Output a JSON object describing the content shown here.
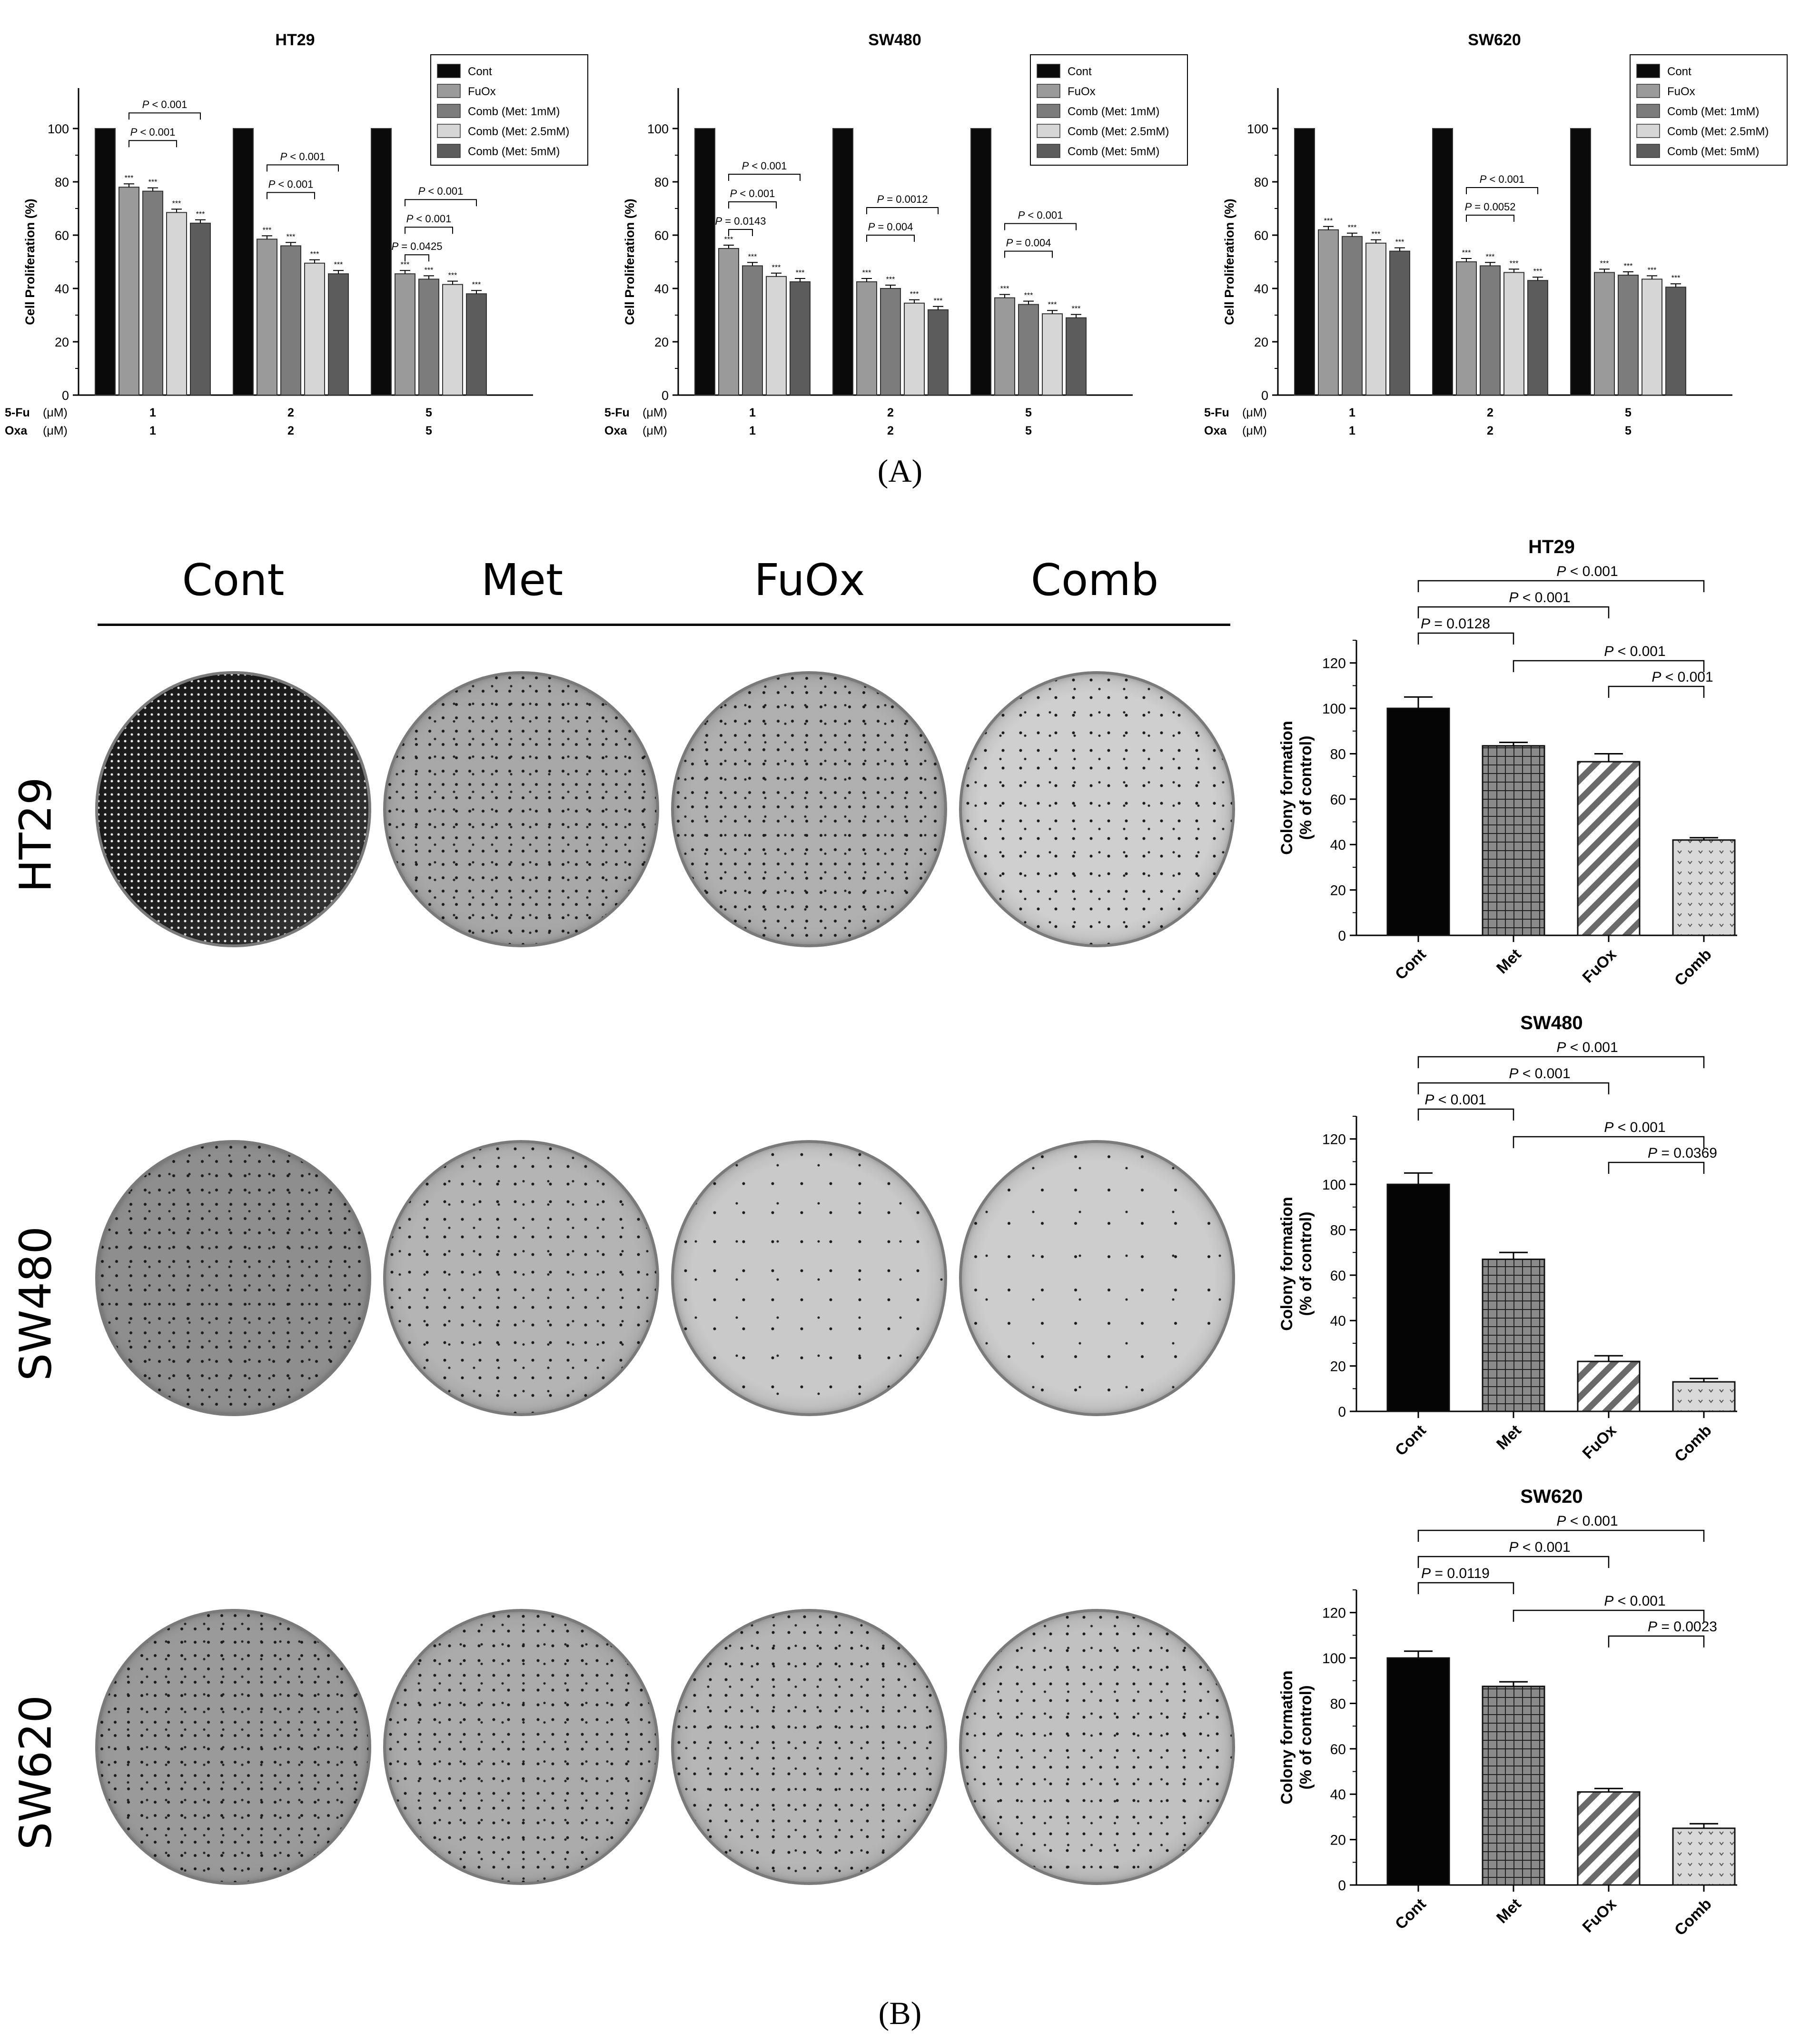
{
  "panel_labels": {
    "a": "(A)",
    "b": "(B)"
  },
  "panel_b": {
    "columns": [
      "Cont",
      "Met",
      "FuOx",
      "Comb"
    ],
    "rows": [
      "HT29",
      "SW480",
      "SW620"
    ]
  },
  "colors": {
    "Cont": "#0a0a0a",
    "FuOx": "#9a9a9a",
    "Met1": "#7c7c7c",
    "Met2_5": "#d6d6d6",
    "Met5": "#5c5c5c"
  },
  "chart_data": [
    {
      "type": "bar",
      "title": "HT29",
      "ylabel": "Cell Proliferation (%)",
      "ylim": [
        0,
        100
      ],
      "yticks": [
        0,
        20,
        40,
        60,
        80,
        100
      ],
      "dose_rows": [
        {
          "label": "5-Fu",
          "unit": "(μM)",
          "values": [
            "1",
            "2",
            "5"
          ]
        },
        {
          "label": "Oxa",
          "unit": "(μM)",
          "values": [
            "1",
            "2",
            "5"
          ]
        }
      ],
      "series": [
        {
          "name": "Cont",
          "values": [
            100,
            100,
            100
          ]
        },
        {
          "name": "FuOx",
          "values": [
            78,
            58.5,
            45.5
          ]
        },
        {
          "name": "Comb (Met: 1mM)",
          "values": [
            76.5,
            56,
            43.5
          ]
        },
        {
          "name": "Comb (Met: 2.5mM)",
          "values": [
            68.5,
            49.5,
            41.5
          ]
        },
        {
          "name": "Comb (Met: 5mM)",
          "values": [
            64.5,
            45.5,
            38
          ]
        }
      ],
      "sig_marker": "***",
      "annotations": [
        {
          "group": 0,
          "text": "P < 0.001",
          "from": 1,
          "to": 4
        },
        {
          "group": 0,
          "text": "P < 0.001",
          "from": 1,
          "to": 3
        },
        {
          "group": 1,
          "text": "P < 0.001",
          "from": 1,
          "to": 4
        },
        {
          "group": 1,
          "text": "P < 0.001",
          "from": 1,
          "to": 3
        },
        {
          "group": 2,
          "text": "P < 0.001",
          "from": 1,
          "to": 4
        },
        {
          "group": 2,
          "text": "P < 0.001",
          "from": 1,
          "to": 3
        },
        {
          "group": 2,
          "text": "P = 0.0425",
          "from": 1,
          "to": 2
        }
      ],
      "legend": "top-right"
    },
    {
      "type": "bar",
      "title": "SW480",
      "ylabel": "Cell Proliferation (%)",
      "ylim": [
        0,
        100
      ],
      "yticks": [
        0,
        20,
        40,
        60,
        80,
        100
      ],
      "dose_rows": [
        {
          "label": "5-Fu",
          "unit": "(μM)",
          "values": [
            "1",
            "2",
            "5"
          ]
        },
        {
          "label": "Oxa",
          "unit": "(μM)",
          "values": [
            "1",
            "2",
            "5"
          ]
        }
      ],
      "series": [
        {
          "name": "Cont",
          "values": [
            100,
            100,
            100
          ]
        },
        {
          "name": "FuOx",
          "values": [
            55,
            42.5,
            36.5
          ]
        },
        {
          "name": "Comb (Met: 1mM)",
          "values": [
            48.5,
            40,
            34
          ]
        },
        {
          "name": "Comb (Met: 2.5mM)",
          "values": [
            44.5,
            34.5,
            30.5
          ]
        },
        {
          "name": "Comb (Met: 5mM)",
          "values": [
            42.5,
            32,
            29
          ]
        }
      ],
      "sig_marker": "***",
      "annotations": [
        {
          "group": 0,
          "text": "P < 0.001",
          "from": 1,
          "to": 4
        },
        {
          "group": 0,
          "text": "P < 0.001",
          "from": 1,
          "to": 3
        },
        {
          "group": 0,
          "text": "P = 0.0143",
          "from": 1,
          "to": 2
        },
        {
          "group": 1,
          "text": "P = 0.0012",
          "from": 1,
          "to": 4
        },
        {
          "group": 1,
          "text": "P = 0.004",
          "from": 1,
          "to": 3
        },
        {
          "group": 2,
          "text": "P < 0.001",
          "from": 1,
          "to": 4
        },
        {
          "group": 2,
          "text": "P = 0.004",
          "from": 1,
          "to": 3
        }
      ],
      "legend": "top-right"
    },
    {
      "type": "bar",
      "title": "SW620",
      "ylabel": "Cell Proliferation (%)",
      "ylim": [
        0,
        100
      ],
      "yticks": [
        0,
        20,
        40,
        60,
        80,
        100
      ],
      "dose_rows": [
        {
          "label": "5-Fu",
          "unit": "(μM)",
          "values": [
            "1",
            "2",
            "5"
          ]
        },
        {
          "label": "Oxa",
          "unit": "(μM)",
          "values": [
            "1",
            "2",
            "5"
          ]
        }
      ],
      "series": [
        {
          "name": "Cont",
          "values": [
            100,
            100,
            100
          ]
        },
        {
          "name": "FuOx",
          "values": [
            62,
            50,
            46
          ]
        },
        {
          "name": "Comb (Met: 1mM)",
          "values": [
            59.5,
            48.5,
            45
          ]
        },
        {
          "name": "Comb (Met: 2.5mM)",
          "values": [
            57,
            46,
            43.5
          ]
        },
        {
          "name": "Comb (Met: 5mM)",
          "values": [
            54,
            43,
            40.5
          ]
        }
      ],
      "sig_marker": "***",
      "annotations": [
        {
          "group": 1,
          "text": "P < 0.001",
          "from": 1,
          "to": 4
        },
        {
          "group": 1,
          "text": "P = 0.0052",
          "from": 1,
          "to": 3
        }
      ],
      "legend": "top-right"
    },
    {
      "type": "bar",
      "title": "HT29",
      "ylabel": "Colony formation\n(% of control)",
      "ylim": [
        0,
        130
      ],
      "yticks": [
        0,
        20,
        40,
        60,
        80,
        100,
        120
      ],
      "categories": [
        "Cont",
        "Met",
        "FuOx",
        "Comb"
      ],
      "values": [
        100,
        83.5,
        76.5,
        42
      ],
      "errors": [
        5,
        1.5,
        3.5,
        1
      ],
      "annotations": [
        {
          "text": "P < 0.001",
          "from": 0,
          "to": 3
        },
        {
          "text": "P < 0.001",
          "from": 0,
          "to": 2
        },
        {
          "text": "P = 0.0128",
          "from": 0,
          "to": 1
        },
        {
          "text": "P < 0.001",
          "from": 1,
          "to": 3
        },
        {
          "text": "P < 0.001",
          "from": 2,
          "to": 3
        }
      ]
    },
    {
      "type": "bar",
      "title": "SW480",
      "ylabel": "Colony formation\n(% of control)",
      "ylim": [
        0,
        130
      ],
      "yticks": [
        0,
        20,
        40,
        60,
        80,
        100,
        120
      ],
      "categories": [
        "Cont",
        "Met",
        "FuOx",
        "Comb"
      ],
      "values": [
        100,
        67,
        22,
        13
      ],
      "errors": [
        5,
        3,
        2.5,
        1.5
      ],
      "annotations": [
        {
          "text": "P < 0.001",
          "from": 0,
          "to": 3
        },
        {
          "text": "P < 0.001",
          "from": 0,
          "to": 2
        },
        {
          "text": "P < 0.001",
          "from": 0,
          "to": 1
        },
        {
          "text": "P < 0.001",
          "from": 1,
          "to": 3
        },
        {
          "text": "P = 0.0369",
          "from": 2,
          "to": 3
        }
      ]
    },
    {
      "type": "bar",
      "title": "SW620",
      "ylabel": "Colony formation\n(% of control)",
      "ylim": [
        0,
        130
      ],
      "yticks": [
        0,
        20,
        40,
        60,
        80,
        100,
        120
      ],
      "categories": [
        "Cont",
        "Met",
        "FuOx",
        "Comb"
      ],
      "values": [
        100,
        87.5,
        41,
        25
      ],
      "errors": [
        3,
        2,
        1.5,
        2
      ],
      "annotations": [
        {
          "text": "P < 0.001",
          "from": 0,
          "to": 3
        },
        {
          "text": "P < 0.001",
          "from": 0,
          "to": 2
        },
        {
          "text": "P = 0.0119",
          "from": 0,
          "to": 1
        },
        {
          "text": "P < 0.001",
          "from": 1,
          "to": 3
        },
        {
          "text": "P = 0.0023",
          "from": 2,
          "to": 3
        }
      ]
    }
  ]
}
